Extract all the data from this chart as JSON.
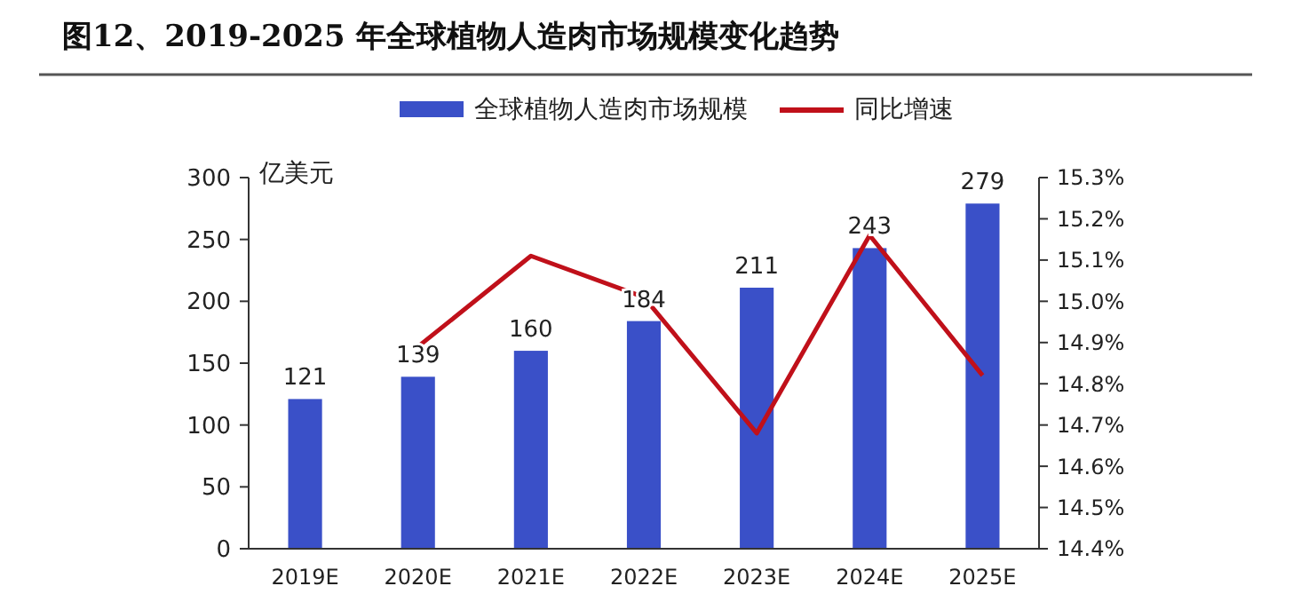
{
  "chart_data": {
    "type": "bar",
    "title": "图12、2019-2025 年全球植物人造肉市场规模变化趋势",
    "ylabel": "亿美元",
    "categories": [
      "2019E",
      "2020E",
      "2021E",
      "2022E",
      "2023E",
      "2024E",
      "2025E"
    ],
    "series": [
      {
        "name": "全球植物人造肉市场规模",
        "color": "#3a50c8",
        "values": [
          121,
          139,
          160,
          184,
          211,
          243,
          279
        ],
        "value_labels": [
          "121",
          "139",
          "160",
          "184",
          "211",
          "243",
          "279"
        ]
      },
      {
        "name": "同比增速",
        "type": "line",
        "axis": "y2",
        "color": "#c0101a",
        "values": [
          null,
          14.89,
          15.11,
          15.01,
          14.68,
          15.16,
          14.82
        ]
      }
    ],
    "ylim": [
      0,
      300
    ],
    "yticks": [
      0,
      50,
      100,
      150,
      200,
      250,
      300
    ],
    "y2lim": [
      14.4,
      15.3
    ],
    "y2ticks": [
      {
        "value": 14.4,
        "label": "14.4%"
      },
      {
        "value": 14.5,
        "label": "14.5%"
      },
      {
        "value": 14.6,
        "label": "14.6%"
      },
      {
        "value": 14.7,
        "label": "14.7%"
      },
      {
        "value": 14.8,
        "label": "14.8%"
      },
      {
        "value": 14.9,
        "label": "14.9%"
      },
      {
        "value": 15.0,
        "label": "15.0%"
      },
      {
        "value": 15.1,
        "label": "15.1%"
      },
      {
        "value": 15.2,
        "label": "15.2%"
      },
      {
        "value": 15.3,
        "label": "15.3%"
      }
    ],
    "legend": "top",
    "grid": false,
    "marker": "none",
    "line_style": "solid"
  }
}
